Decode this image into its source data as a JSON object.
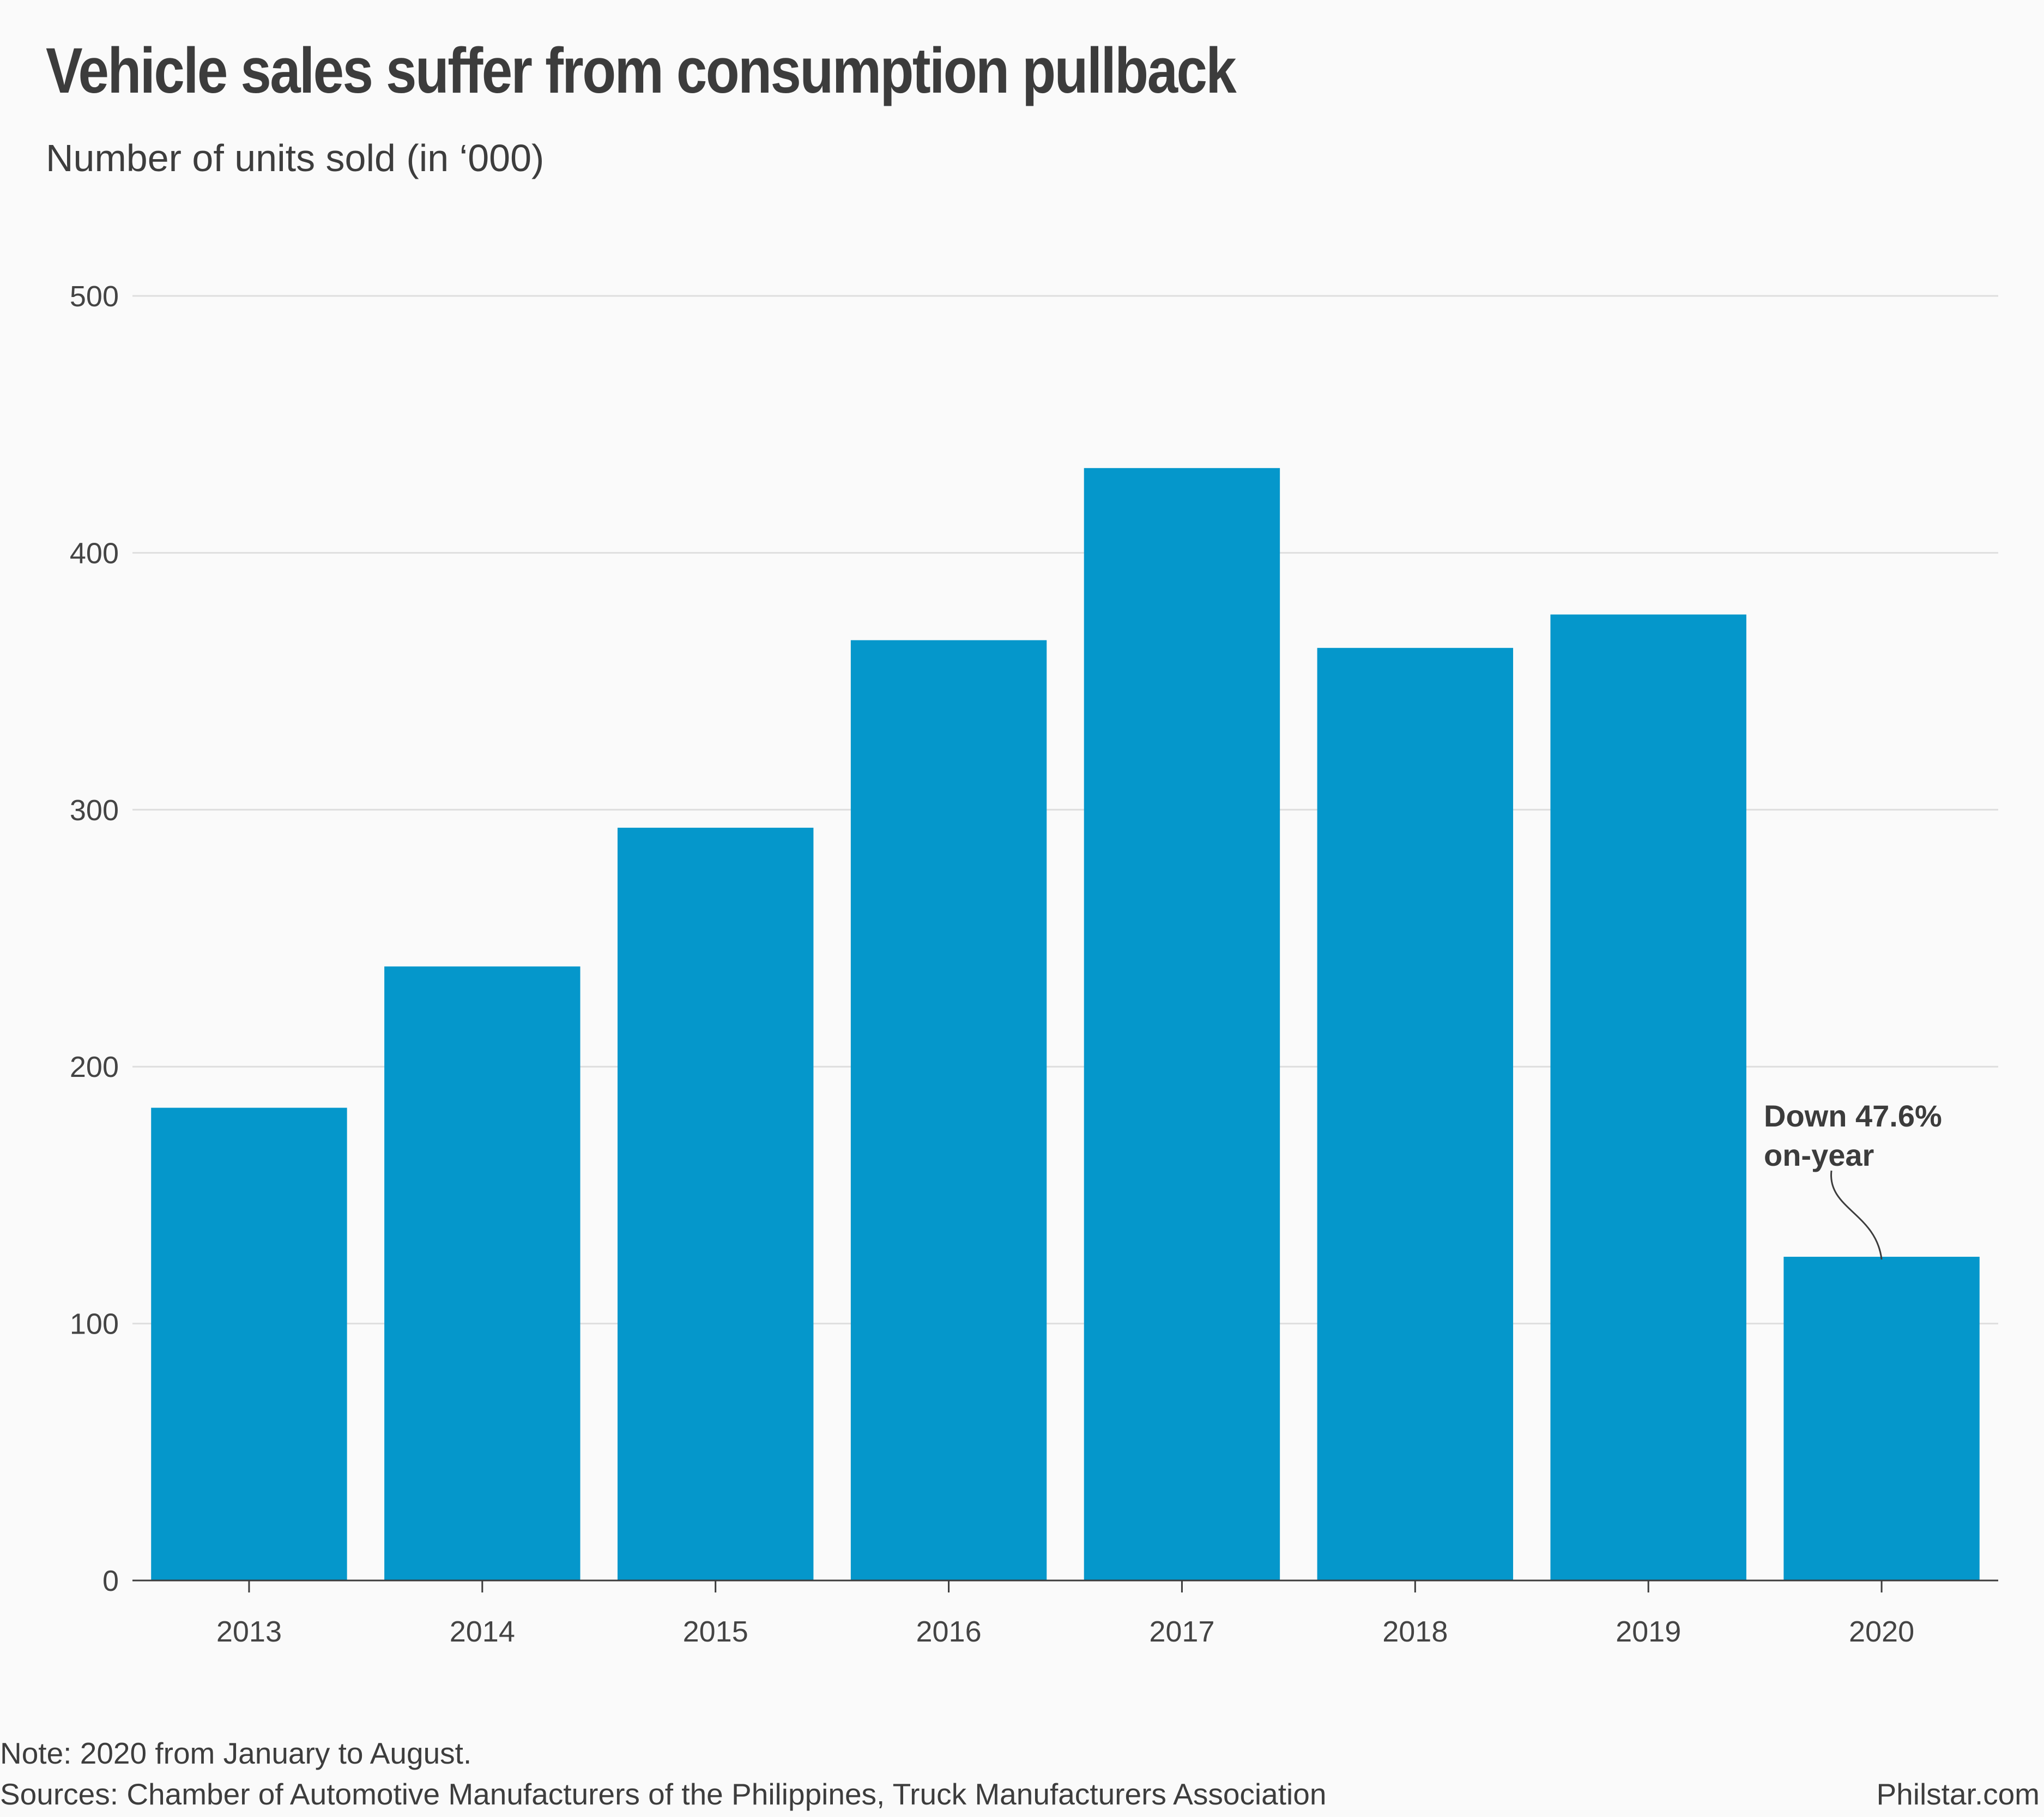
{
  "chart_data": {
    "type": "bar",
    "title": "Vehicle sales suffer from consumption pullback",
    "subtitle": "Number of units sold (in ‘000)",
    "categories": [
      "2013",
      "2014",
      "2015",
      "2016",
      "2017",
      "2018",
      "2019",
      "2020"
    ],
    "values": [
      184,
      239,
      293,
      366,
      433,
      363,
      376,
      126
    ],
    "ylim": [
      0,
      500
    ],
    "yticks": [
      "0",
      "100",
      "200",
      "300",
      "400",
      "500"
    ],
    "grid": true,
    "bar_color": "#0597cb",
    "annotation": {
      "category": "2020",
      "line1": "Down 47.6%",
      "line2": "on-year"
    },
    "note": "Note: 2020 from January to August.",
    "sources": "Sources: Chamber of Automotive Manufacturers of the Philippines, Truck Manufacturers Association",
    "brand": "Philstar.com"
  }
}
